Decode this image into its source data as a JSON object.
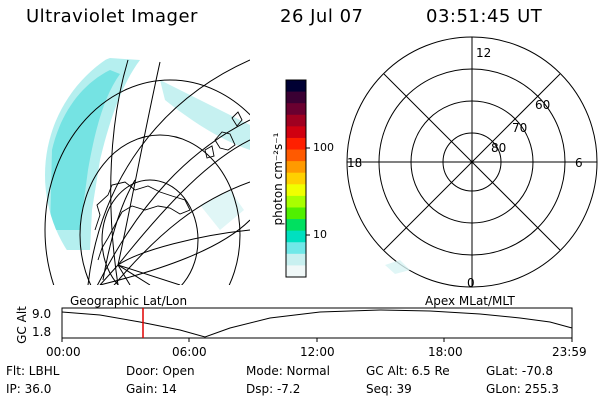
{
  "header": {
    "title": "Ultraviolet Imager",
    "date": "26 Jul 07",
    "time": "03:51:45 UT"
  },
  "colorbar": {
    "unit_label": "photon cm⁻²s⁻¹",
    "tick_labels": [
      "100",
      "10"
    ],
    "colors": [
      "#000033",
      "#3a0033",
      "#6a0030",
      "#a00020",
      "#d00010",
      "#ff2000",
      "#ff5a00",
      "#ff9a00",
      "#ffd000",
      "#f0ff00",
      "#a8ff00",
      "#50f000",
      "#00e060",
      "#00e0c0",
      "#70e8e8",
      "#c8f0f0",
      "#f0f8f8"
    ]
  },
  "polar_plot": {
    "mlt_labels": [
      "12",
      "18",
      "6",
      "0"
    ],
    "lat_labels": [
      "60",
      "70",
      "80"
    ]
  },
  "timeline": {
    "left_label": "Geographic Lat/Lon",
    "right_label": "Apex MLat/MLT",
    "axis_title": "GC Alt",
    "y_ticks": [
      "9.0",
      "1.8"
    ],
    "x_ticks": [
      "00:00",
      "06:00",
      "12:00",
      "18:00",
      "23:59"
    ],
    "marker_color": "#e00000"
  },
  "info": {
    "flt": "Flt: LBHL",
    "ip": "IP: 36.0",
    "door": "Door: Open",
    "gain": "Gain: 14",
    "mode": "Mode: Normal",
    "dsp": "Dsp:    -7.2",
    "gcalt": "GC Alt: 6.5 Re",
    "seq": "Seq: 39",
    "glat": "GLat: -70.8",
    "glon": "GLon: 255.3"
  }
}
